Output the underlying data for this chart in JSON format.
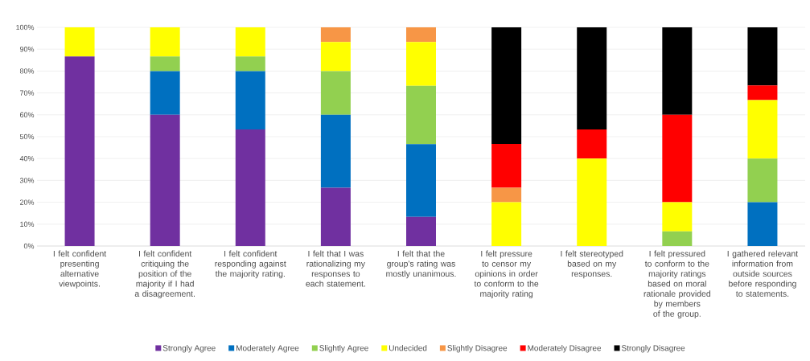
{
  "chart_data": {
    "type": "bar",
    "stacked": true,
    "categories": [
      "I felt confident presenting alternative viewpoints.",
      "I felt confident critiquing the position of the majority if I had a disagreement.",
      "I felt confident responding against the majority rating.",
      "I felt that I was rationalizing my responses to each statement.",
      "I felt that the group's rating was mostly unanimous.",
      "I felt pressure to censor my opinions in order to conform to the majority rating",
      "I felt stereotyped based on my responses.",
      "I felt pressured to conform to the majority ratings based on moral rationale provided by members of the group.",
      "I gathered relevant information from outside sources before responding to statements."
    ],
    "series": [
      {
        "name": "Strongly Agree",
        "color": "#7030a0",
        "values": [
          86.7,
          60,
          53.3,
          26.7,
          13.3,
          null,
          null,
          null,
          null
        ]
      },
      {
        "name": "Moderately Agree",
        "color": "#0070c0",
        "values": [
          null,
          20,
          26.7,
          33.3,
          33.3,
          null,
          null,
          null,
          20
        ]
      },
      {
        "name": "Slightly Agree",
        "color": "#92d050",
        "values": [
          null,
          6.7,
          6.7,
          20,
          26.7,
          null,
          null,
          6.7,
          20
        ]
      },
      {
        "name": "Undecided",
        "color": "#ffff00",
        "values": [
          13.3,
          13.3,
          13.3,
          13.3,
          20,
          20,
          40,
          13.3,
          26.7
        ]
      },
      {
        "name": "Slightly Disagree",
        "color": "#f79646",
        "values": [
          null,
          null,
          null,
          6.7,
          6.7,
          6.7,
          null,
          null,
          null
        ]
      },
      {
        "name": "Moderately Disagree",
        "color": "#ff0000",
        "values": [
          null,
          null,
          null,
          null,
          null,
          20,
          13.3,
          40,
          6.7
        ]
      },
      {
        "name": "Strongly Disagree",
        "color": "#000000",
        "values": [
          null,
          null,
          null,
          null,
          null,
          53.3,
          46.7,
          40,
          26.7
        ]
      }
    ],
    "ylim": [
      0,
      100
    ],
    "yticks": [
      {
        "value": 0,
        "label": "0%"
      },
      {
        "value": 10,
        "label": "10%"
      },
      {
        "value": 20,
        "label": "20%"
      },
      {
        "value": 30,
        "label": "30%"
      },
      {
        "value": 40,
        "label": "40%"
      },
      {
        "value": 50,
        "label": "50%"
      },
      {
        "value": 60,
        "label": "60%"
      },
      {
        "value": 70,
        "label": "70%"
      },
      {
        "value": 80,
        "label": "80%"
      },
      {
        "value": 90,
        "label": "90%"
      },
      {
        "value": 100,
        "label": "100%"
      }
    ],
    "grid": "y",
    "legend": "bottom"
  }
}
